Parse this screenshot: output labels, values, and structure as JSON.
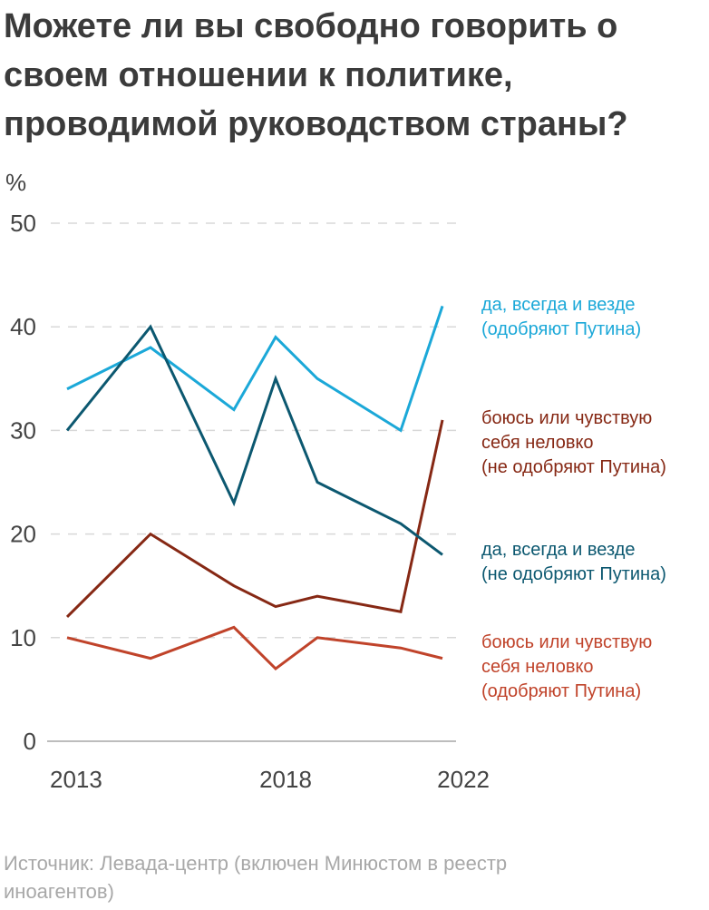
{
  "chart_data": {
    "type": "line",
    "title": "Можете ли вы свободно говорить о своем отношении к политике, проводимой руководством страны?",
    "ylabel": "%",
    "ylim": [
      0,
      50
    ],
    "yticks": [
      "0",
      "10",
      "20",
      "30",
      "40",
      "50"
    ],
    "xticks": [
      "2013",
      "2018",
      "2022"
    ],
    "x": [
      2013,
      2015,
      2017,
      2018,
      2019,
      2021,
      2022
    ],
    "grid": true,
    "legend": "right, inline labels",
    "series": [
      {
        "name": "да, всегда и везде (одобряют Путина)",
        "lines": [
          "да, всегда и везде",
          "(одобряют Путина)"
        ],
        "color": "#1ba8d8",
        "values": [
          34,
          38,
          32,
          39,
          35,
          30,
          42
        ]
      },
      {
        "name": "боюсь или чувствую себя неловко (не одобряют Путина)",
        "lines": [
          "боюсь или чувствую",
          "себя неловко",
          "(не одобряют Путина)"
        ],
        "color": "#862814",
        "values": [
          12,
          20,
          15,
          13,
          14,
          12.5,
          31
        ]
      },
      {
        "name": "да, всегда и везде (не одобряют Путина)",
        "lines": [
          "да, всегда и везде",
          "(не одобряют Путина)"
        ],
        "color": "#0c5870",
        "values": [
          30,
          40,
          23,
          35,
          25,
          21,
          18
        ]
      },
      {
        "name": "боюсь или чувствую себя неловко (одобряют Путина)",
        "lines": [
          "боюсь или чувствую",
          "себя неловко",
          "(одобряют Путина)"
        ],
        "color": "#c0432a",
        "values": [
          10,
          8,
          11,
          7,
          10,
          9,
          8
        ]
      }
    ]
  },
  "source": "Источник: Левада-центр (включен Минюстом в реестр иноагентов)"
}
